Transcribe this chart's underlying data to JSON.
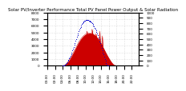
{
  "title": "Solar PV/Inverter Performance Total PV Panel Power Output & Solar Radiation",
  "bg_color": "#ffffff",
  "grid_color": "#aaaaaa",
  "bar_color": "#cc0000",
  "scatter_color": "#0000cc",
  "ylim_left": [
    0,
    8000
  ],
  "ylim_right": [
    0,
    1000
  ],
  "n_points": 144,
  "pv_power": [
    0,
    0,
    0,
    0,
    0,
    0,
    0,
    0,
    0,
    0,
    0,
    0,
    0,
    0,
    0,
    0,
    0,
    0,
    0,
    0,
    0,
    0,
    0,
    0,
    10,
    30,
    60,
    100,
    160,
    240,
    340,
    460,
    580,
    720,
    870,
    1020,
    1180,
    1350,
    1520,
    1700,
    1880,
    2060,
    2250,
    2440,
    2630,
    2820,
    3010,
    3190,
    3370,
    3540,
    3700,
    3850,
    3990,
    4120,
    4240,
    4350,
    4450,
    4540,
    4620,
    4690,
    4750,
    4800,
    5200,
    4840,
    4870,
    4890,
    4900,
    4900,
    4890,
    4870,
    5500,
    4800,
    4750,
    4690,
    4620,
    4540,
    4800,
    4350,
    4240,
    4120,
    3990,
    3850,
    5200,
    3540,
    3370,
    3190,
    4500,
    2820,
    2630,
    2440,
    2250,
    2060,
    1880,
    1700,
    1520,
    1350,
    1180,
    1020,
    870,
    720,
    580,
    460,
    340,
    240,
    160,
    100,
    60,
    30,
    10,
    0,
    0,
    0,
    0,
    0,
    0,
    0,
    0,
    0,
    0,
    0,
    0,
    0,
    0,
    0,
    0,
    0,
    0,
    0,
    0,
    0,
    0,
    0,
    0,
    0,
    0,
    0,
    0,
    0,
    0,
    0,
    0,
    0,
    0,
    0,
    0
  ],
  "radiation": [
    0,
    0,
    0,
    0,
    0,
    0,
    0,
    0,
    0,
    0,
    0,
    0,
    0,
    0,
    0,
    0,
    0,
    0,
    0,
    0,
    0,
    0,
    0,
    0,
    2,
    5,
    10,
    18,
    28,
    40,
    55,
    72,
    90,
    112,
    136,
    162,
    190,
    220,
    252,
    285,
    320,
    356,
    393,
    430,
    468,
    505,
    542,
    578,
    612,
    645,
    676,
    705,
    732,
    756,
    778,
    797,
    814,
    828,
    839,
    848,
    854,
    858,
    860,
    859,
    856,
    851,
    844,
    835,
    824,
    811,
    796,
    779,
    760,
    739,
    716,
    691,
    664,
    635,
    604,
    571,
    536,
    499,
    461,
    421,
    380,
    338,
    295,
    252,
    209,
    167,
    127,
    89,
    55,
    28,
    12,
    4,
    0,
    0,
    0,
    0,
    0,
    0,
    0,
    0,
    0,
    0,
    0,
    0,
    0,
    0,
    0,
    0,
    0,
    0,
    0,
    0,
    0,
    0,
    0,
    0,
    0,
    0,
    0,
    0,
    0,
    0,
    0,
    0,
    0,
    0,
    0,
    0,
    0,
    0,
    0,
    0,
    0,
    0,
    0,
    0,
    0,
    0,
    0,
    0
  ],
  "title_fontsize": 4.0,
  "tick_fontsize": 3.0,
  "label_fontsize": 3.5
}
